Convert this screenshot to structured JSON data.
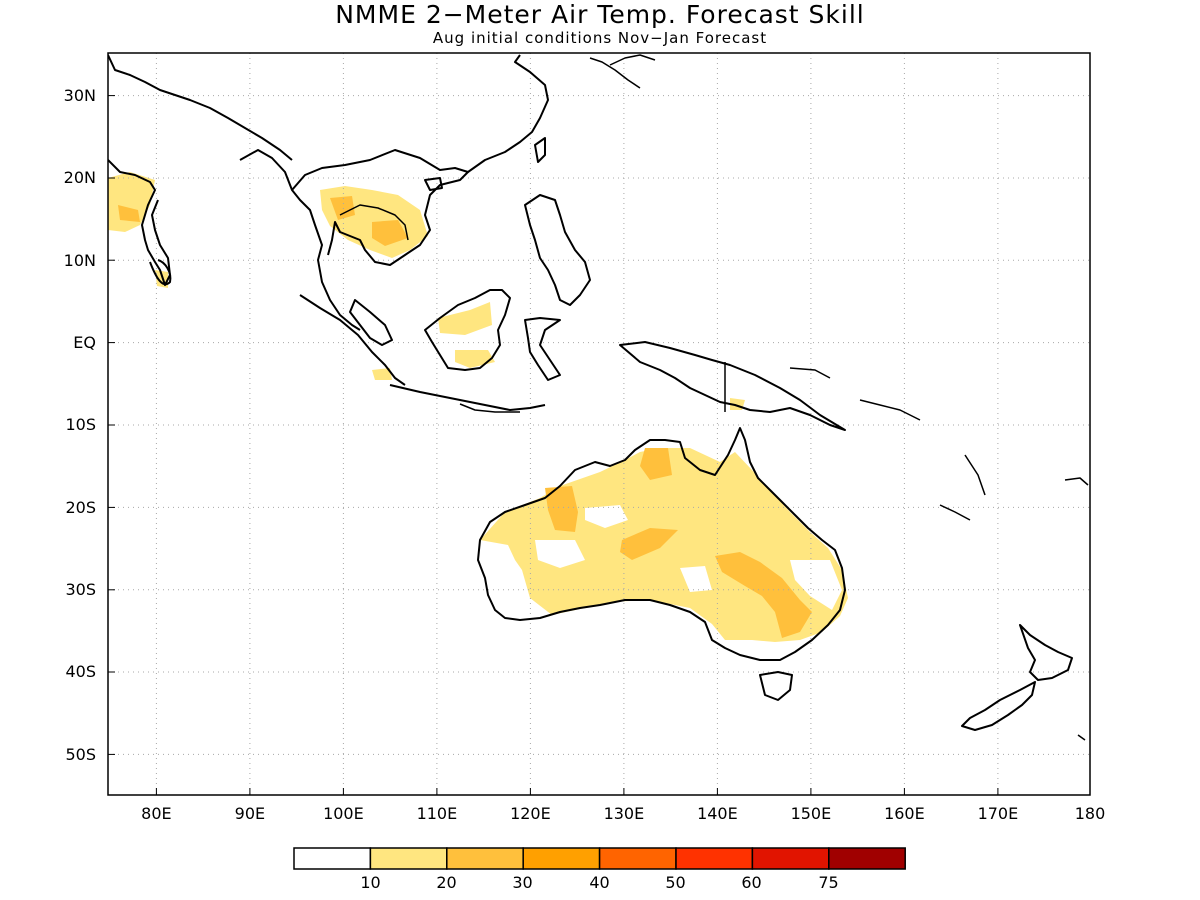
{
  "title": "NMME 2−Meter Air Temp. Forecast Skill",
  "subtitle": "Aug initial conditions  Nov−Jan Forecast",
  "map": {
    "region": "Indo-Pacific / Australia",
    "lon_range": [
      75,
      180
    ],
    "lat_range": [
      -55,
      35
    ],
    "lon_labels": [
      "80E",
      "90E",
      "100E",
      "110E",
      "120E",
      "130E",
      "140E",
      "150E",
      "160E",
      "170E",
      "180"
    ],
    "lat_labels": [
      "30N",
      "20N",
      "10N",
      "EQ",
      "10S",
      "20S",
      "30S",
      "40S",
      "50S"
    ],
    "grid": "dotted",
    "coastline_color": "#000000"
  },
  "colorbar": {
    "labels": [
      "10",
      "20",
      "30",
      "40",
      "50",
      "60",
      "75"
    ],
    "colors": [
      "#ffffff",
      "#ffe680",
      "#ffc03c",
      "#ffa000",
      "#ff6400",
      "#ff3200",
      "#e11400",
      "#a00000"
    ]
  }
}
